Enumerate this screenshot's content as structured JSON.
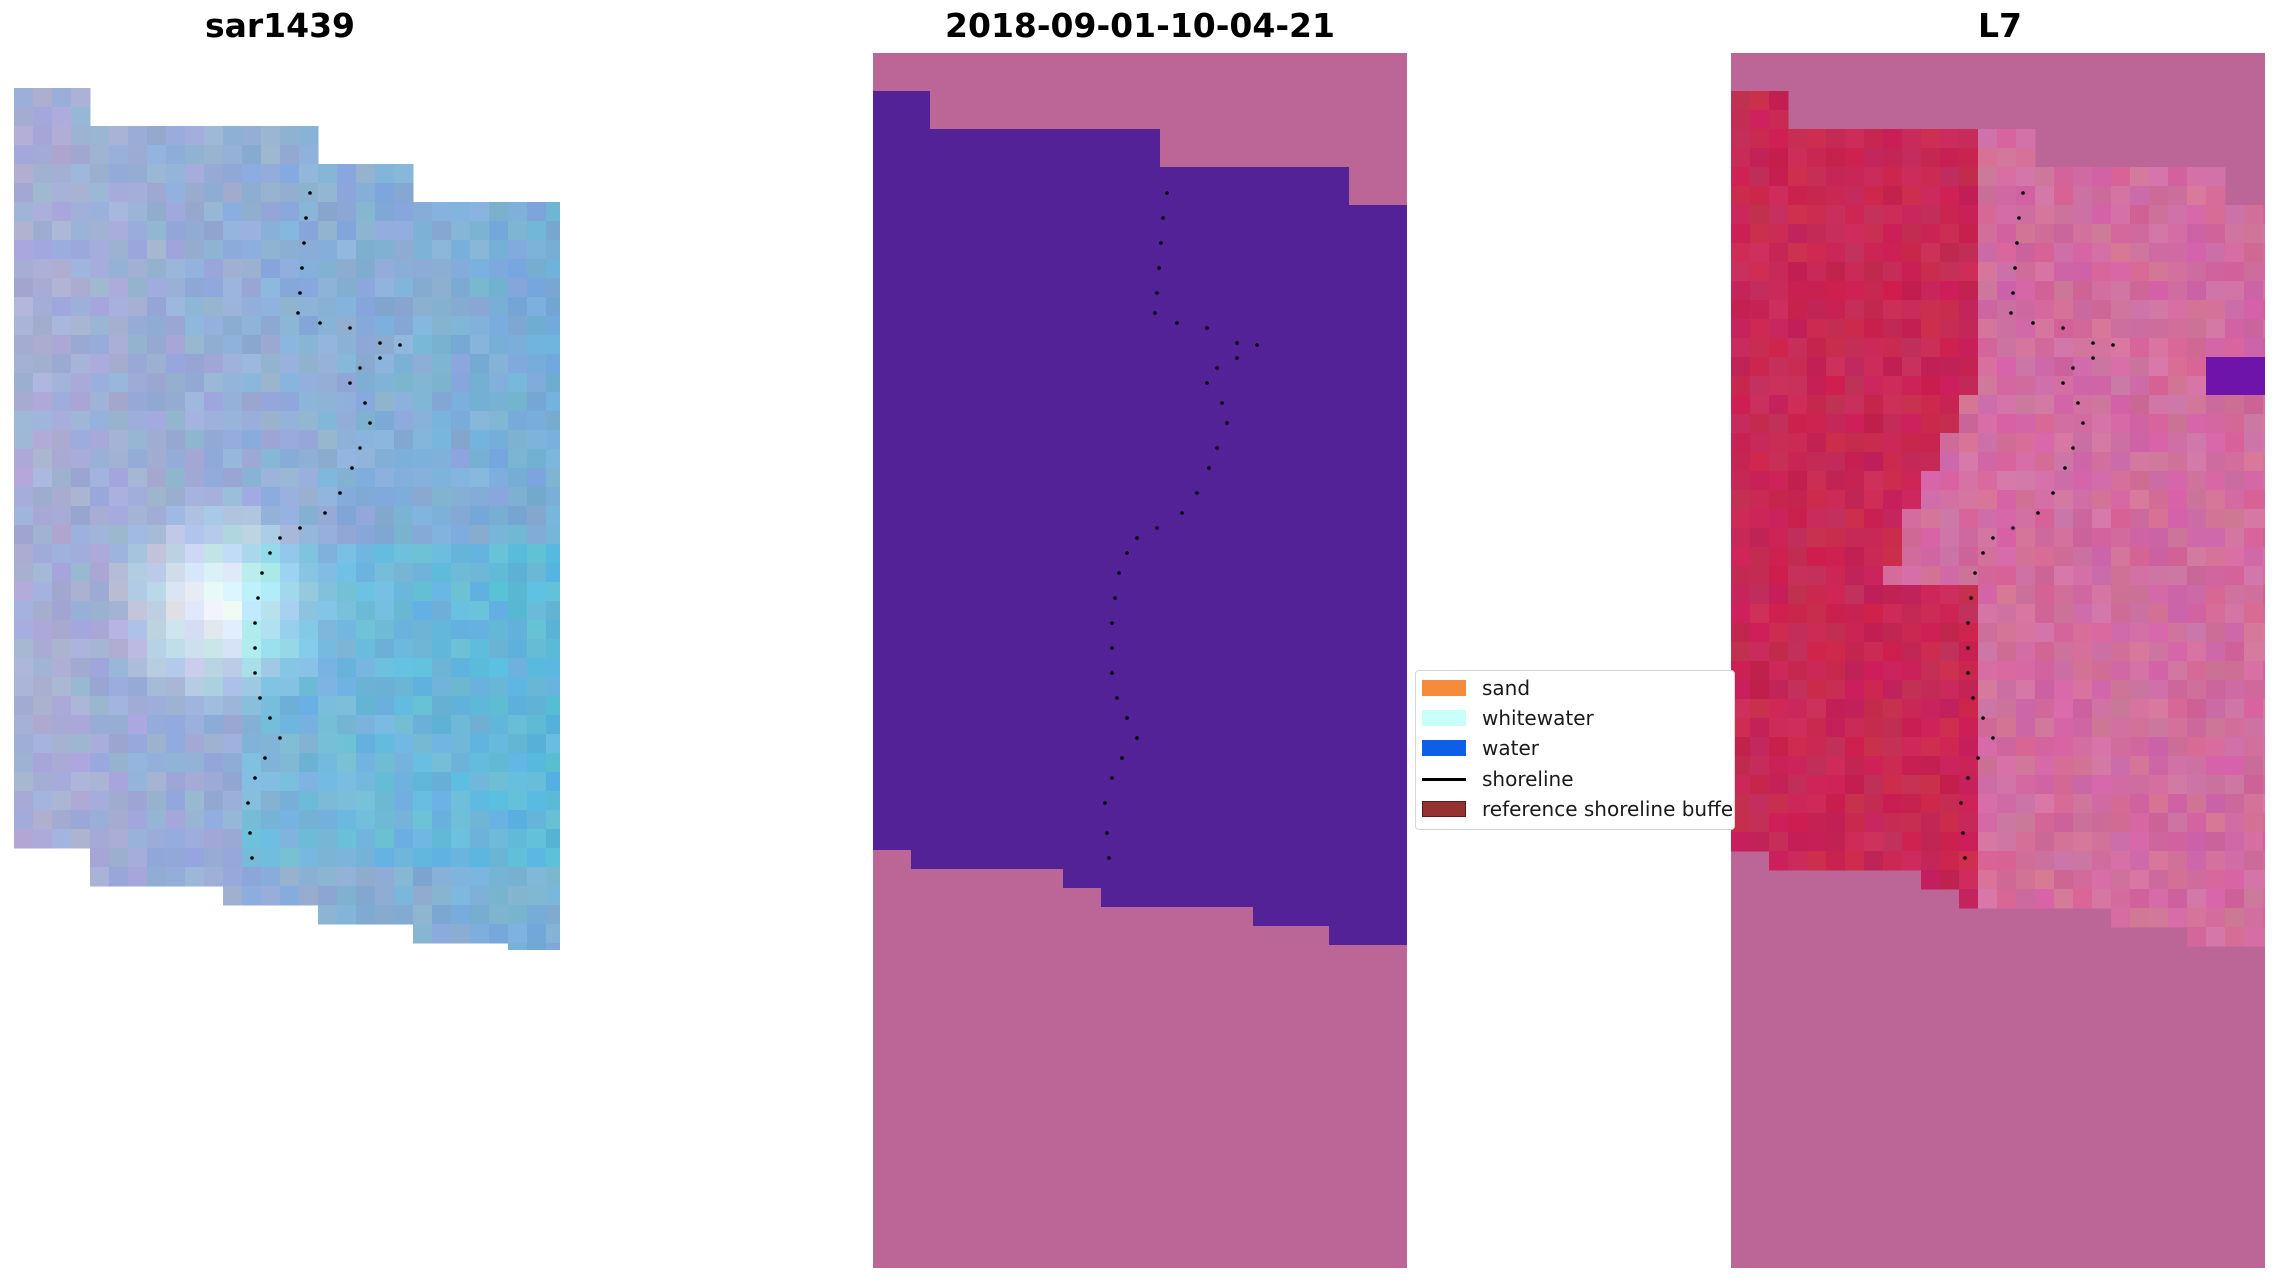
{
  "panels": [
    {
      "title": "sar1439"
    },
    {
      "title": "2018-09-01-10-04-21"
    },
    {
      "title": "L7"
    }
  ],
  "legend": {
    "items": [
      {
        "label": "sand",
        "color": "#f78b3d",
        "type": "patch"
      },
      {
        "label": "whitewater",
        "color": "#c8fff8",
        "type": "patch"
      },
      {
        "label": "water",
        "color": "#0d5fe8",
        "type": "patch"
      },
      {
        "label": "shoreline",
        "color": "#000000",
        "type": "line"
      },
      {
        "label": "reference shoreline buffer",
        "color": "#943232",
        "type": "patch"
      }
    ]
  },
  "colors": {
    "background_pink": "#bb6696",
    "water_purple": "#532296",
    "l7_red": "#c72a58",
    "sar_blue": "#86aad6"
  }
}
